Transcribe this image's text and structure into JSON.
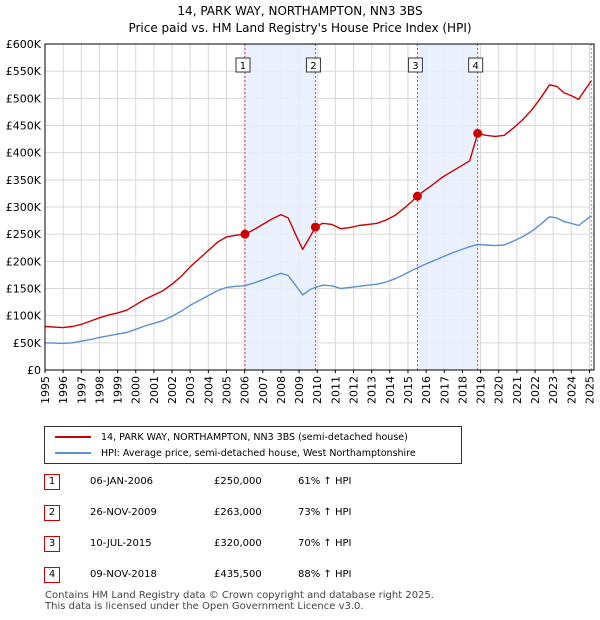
{
  "chart_data": {
    "type": "line",
    "title": "14, PARK WAY, NORTHAMPTON, NN3 3BS",
    "subtitle": "Price paid vs. HM Land Registry's House Price Index (HPI)",
    "xlim": [
      1995,
      2025.25
    ],
    "ylim": [
      0,
      600000
    ],
    "y_ticks": [
      0,
      50000,
      100000,
      150000,
      200000,
      250000,
      300000,
      350000,
      400000,
      450000,
      500000,
      550000,
      600000
    ],
    "y_tick_labels": [
      "£0",
      "£50K",
      "£100K",
      "£150K",
      "£200K",
      "£250K",
      "£300K",
      "£350K",
      "£400K",
      "£450K",
      "£500K",
      "£550K",
      "£600K"
    ],
    "x_ticks": [
      1995,
      1996,
      1997,
      1998,
      1999,
      2000,
      2001,
      2002,
      2003,
      2004,
      2005,
      2006,
      2007,
      2008,
      2009,
      2010,
      2011,
      2012,
      2013,
      2014,
      2015,
      2016,
      2017,
      2018,
      2019,
      2020,
      2021,
      2022,
      2023,
      2024,
      2025
    ],
    "x_tick_labels": [
      "1995",
      "1996",
      "1997",
      "1998",
      "1999",
      "2000",
      "2001",
      "2002",
      "2003",
      "2004",
      "2005",
      "2006",
      "2007",
      "2008",
      "2009",
      "2010",
      "2011",
      "2012",
      "2013",
      "2014",
      "2015",
      "2016",
      "2017",
      "2018",
      "2019",
      "2020",
      "2021",
      "2022",
      "2023",
      "2024",
      "2025"
    ],
    "grid": true,
    "series": [
      {
        "name": "14, PARK WAY, NORTHAMPTON, NN3 3BS (semi-detached house)",
        "color": "#cc0000",
        "points": [
          [
            1995.0,
            80000
          ],
          [
            1995.5,
            79000
          ],
          [
            1996.0,
            78000
          ],
          [
            1996.5,
            80000
          ],
          [
            1997.0,
            84000
          ],
          [
            1997.5,
            90000
          ],
          [
            1998.0,
            96000
          ],
          [
            1998.5,
            101000
          ],
          [
            1999.0,
            105000
          ],
          [
            1999.5,
            110000
          ],
          [
            2000.0,
            120000
          ],
          [
            2000.5,
            130000
          ],
          [
            2001.0,
            138000
          ],
          [
            2001.5,
            146000
          ],
          [
            2002.0,
            158000
          ],
          [
            2002.5,
            172000
          ],
          [
            2003.0,
            190000
          ],
          [
            2003.5,
            205000
          ],
          [
            2004.0,
            220000
          ],
          [
            2004.5,
            235000
          ],
          [
            2005.0,
            245000
          ],
          [
            2005.5,
            248000
          ],
          [
            2006.02,
            250000
          ],
          [
            2006.5,
            258000
          ],
          [
            2007.0,
            268000
          ],
          [
            2007.5,
            278000
          ],
          [
            2008.0,
            286000
          ],
          [
            2008.4,
            280000
          ],
          [
            2008.8,
            250000
          ],
          [
            2009.2,
            222000
          ],
          [
            2009.6,
            245000
          ],
          [
            2009.9,
            263000
          ],
          [
            2010.3,
            270000
          ],
          [
            2010.8,
            268000
          ],
          [
            2011.3,
            260000
          ],
          [
            2011.8,
            262000
          ],
          [
            2012.3,
            266000
          ],
          [
            2012.8,
            268000
          ],
          [
            2013.3,
            270000
          ],
          [
            2013.8,
            276000
          ],
          [
            2014.3,
            285000
          ],
          [
            2014.8,
            298000
          ],
          [
            2015.2,
            310000
          ],
          [
            2015.52,
            320000
          ],
          [
            2015.9,
            330000
          ],
          [
            2016.4,
            342000
          ],
          [
            2016.9,
            355000
          ],
          [
            2017.4,
            365000
          ],
          [
            2017.9,
            375000
          ],
          [
            2018.4,
            385000
          ],
          [
            2018.84,
            435500
          ],
          [
            2019.3,
            432000
          ],
          [
            2019.8,
            430000
          ],
          [
            2020.3,
            432000
          ],
          [
            2020.8,
            445000
          ],
          [
            2021.3,
            460000
          ],
          [
            2021.8,
            478000
          ],
          [
            2022.3,
            500000
          ],
          [
            2022.8,
            525000
          ],
          [
            2023.2,
            522000
          ],
          [
            2023.6,
            510000
          ],
          [
            2024.0,
            505000
          ],
          [
            2024.4,
            498000
          ],
          [
            2024.8,
            518000
          ],
          [
            2025.1,
            532000
          ]
        ]
      },
      {
        "name": "HPI: Average price, semi-detached house, West Northamptonshire",
        "color": "#5b8fd0",
        "points": [
          [
            1995.0,
            50000
          ],
          [
            1995.5,
            49500
          ],
          [
            1996.0,
            49000
          ],
          [
            1996.5,
            50000
          ],
          [
            1997.0,
            53000
          ],
          [
            1997.5,
            56000
          ],
          [
            1998.0,
            60000
          ],
          [
            1998.5,
            63000
          ],
          [
            1999.0,
            66000
          ],
          [
            1999.5,
            69000
          ],
          [
            2000.0,
            75000
          ],
          [
            2000.5,
            81000
          ],
          [
            2001.0,
            86000
          ],
          [
            2001.5,
            91000
          ],
          [
            2002.0,
            99000
          ],
          [
            2002.5,
            108000
          ],
          [
            2003.0,
            119000
          ],
          [
            2003.5,
            128000
          ],
          [
            2004.0,
            137000
          ],
          [
            2004.5,
            146000
          ],
          [
            2005.0,
            152000
          ],
          [
            2005.5,
            154000
          ],
          [
            2006.0,
            155000
          ],
          [
            2006.5,
            160000
          ],
          [
            2007.0,
            166000
          ],
          [
            2007.5,
            172000
          ],
          [
            2008.0,
            178000
          ],
          [
            2008.4,
            174000
          ],
          [
            2008.8,
            156000
          ],
          [
            2009.2,
            138000
          ],
          [
            2009.6,
            148000
          ],
          [
            2009.9,
            152000
          ],
          [
            2010.3,
            156000
          ],
          [
            2010.8,
            155000
          ],
          [
            2011.3,
            150000
          ],
          [
            2011.8,
            152000
          ],
          [
            2012.3,
            154000
          ],
          [
            2012.8,
            156000
          ],
          [
            2013.3,
            158000
          ],
          [
            2013.8,
            162000
          ],
          [
            2014.3,
            168000
          ],
          [
            2014.8,
            176000
          ],
          [
            2015.2,
            183000
          ],
          [
            2015.52,
            188000
          ],
          [
            2015.9,
            194000
          ],
          [
            2016.4,
            201000
          ],
          [
            2016.9,
            208000
          ],
          [
            2017.4,
            215000
          ],
          [
            2017.9,
            221000
          ],
          [
            2018.4,
            227000
          ],
          [
            2018.84,
            231000
          ],
          [
            2019.3,
            230000
          ],
          [
            2019.8,
            229000
          ],
          [
            2020.3,
            230000
          ],
          [
            2020.8,
            237000
          ],
          [
            2021.3,
            245000
          ],
          [
            2021.8,
            255000
          ],
          [
            2022.3,
            268000
          ],
          [
            2022.8,
            282000
          ],
          [
            2023.2,
            280000
          ],
          [
            2023.6,
            273000
          ],
          [
            2024.0,
            270000
          ],
          [
            2024.4,
            266000
          ],
          [
            2024.8,
            276000
          ],
          [
            2025.1,
            284000
          ]
        ]
      }
    ],
    "shaded_ranges": [
      [
        2006.02,
        2009.9
      ],
      [
        2015.52,
        2018.84
      ]
    ],
    "sale_markers": [
      {
        "label": "1",
        "x": 2006.02,
        "price": 250000
      },
      {
        "label": "2",
        "x": 2009.9,
        "price": 263000
      },
      {
        "label": "3",
        "x": 2015.52,
        "price": 320000
      },
      {
        "label": "4",
        "x": 2018.84,
        "price": 435500
      }
    ]
  },
  "legend": {
    "property_label": "14, PARK WAY, NORTHAMPTON, NN3 3BS (semi-detached house)",
    "hpi_label": "HPI: Average price, semi-detached house, West Northamptonshire",
    "property_color": "#cc0000",
    "hpi_color": "#5b8fd0"
  },
  "sales": [
    {
      "num": "1",
      "date": "06-JAN-2006",
      "price": "£250,000",
      "hpi": "61% ↑ HPI"
    },
    {
      "num": "2",
      "date": "26-NOV-2009",
      "price": "£263,000",
      "hpi": "73% ↑ HPI"
    },
    {
      "num": "3",
      "date": "10-JUL-2015",
      "price": "£320,000",
      "hpi": "70% ↑ HPI"
    },
    {
      "num": "4",
      "date": "09-NOV-2018",
      "price": "£435,500",
      "hpi": "88% ↑ HPI"
    }
  ],
  "footer": {
    "line1": "Contains HM Land Registry data © Crown copyright and database right 2025.",
    "line2": "This data is licensed under the Open Government Licence v3.0."
  }
}
